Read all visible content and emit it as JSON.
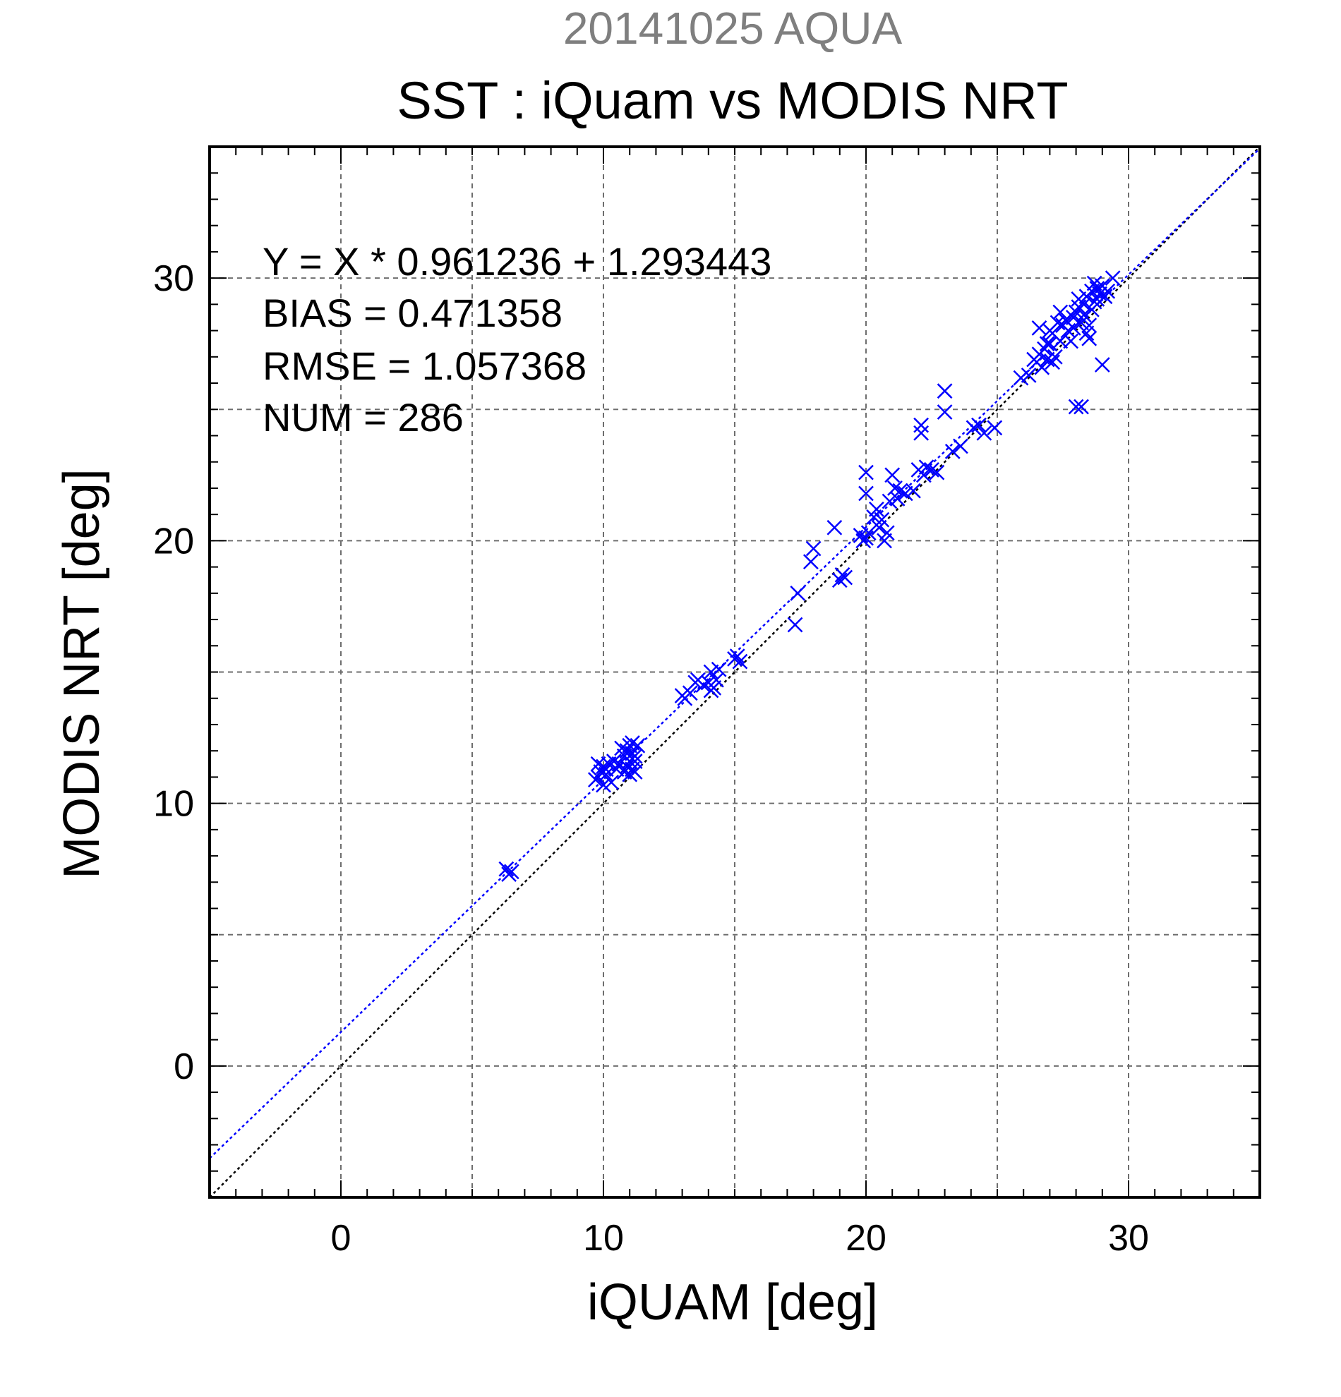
{
  "chart_data": {
    "type": "scatter",
    "suptitle": "20141025 AQUA",
    "title": "SST : iQuam vs MODIS NRT",
    "xlabel": "iQUAM [deg]",
    "ylabel": "MODIS NRT [deg]",
    "xlim": [
      -5,
      35
    ],
    "ylim": [
      -5,
      35
    ],
    "xticks": [
      0,
      10,
      20,
      30
    ],
    "yticks": [
      0,
      10,
      20,
      30
    ],
    "xtick_labels": [
      "0",
      "10",
      "20",
      "30"
    ],
    "ytick_labels": [
      "0",
      "10",
      "20",
      "30"
    ],
    "grid": true,
    "grid_step": 5,
    "minor_step": 1,
    "stats": [
      "Y = X * 0.961236 + 1.293443",
      "BIAS = 0.471358",
      "RMSE = 1.057368",
      "NUM = 286"
    ],
    "fit_line": {
      "slope": 0.961236,
      "intercept": 1.293443,
      "color": "#0000ff"
    },
    "identity_line": {
      "slope": 1,
      "intercept": 0,
      "color": "#000000"
    },
    "marker": {
      "shape": "x",
      "color": "#0000ff"
    },
    "points": [
      [
        6.3,
        7.5
      ],
      [
        6.5,
        7.4
      ],
      [
        6.4,
        7.3
      ],
      [
        9.8,
        11.0
      ],
      [
        9.9,
        11.2
      ],
      [
        10.0,
        11.4
      ],
      [
        10.1,
        11.1
      ],
      [
        10.2,
        11.5
      ],
      [
        9.7,
        10.9
      ],
      [
        10.3,
        10.8
      ],
      [
        10.0,
        10.7
      ],
      [
        10.5,
        11.3
      ],
      [
        10.1,
        11.3
      ],
      [
        10.4,
        11.6
      ],
      [
        9.8,
        11.5
      ],
      [
        10.8,
        11.8
      ],
      [
        10.9,
        12.0
      ],
      [
        11.0,
        12.2
      ],
      [
        11.1,
        11.9
      ],
      [
        11.2,
        11.6
      ],
      [
        10.9,
        11.4
      ],
      [
        11.0,
        11.1
      ],
      [
        11.1,
        11.3
      ],
      [
        11.2,
        11.2
      ],
      [
        11.3,
        12.2
      ],
      [
        11.1,
        12.3
      ],
      [
        10.8,
        11.2
      ],
      [
        10.7,
        12.1
      ],
      [
        11.0,
        11.6
      ],
      [
        11.2,
        11.8
      ],
      [
        10.6,
        11.5
      ],
      [
        13.0,
        14.1
      ],
      [
        13.1,
        14.0
      ],
      [
        13.3,
        14.2
      ],
      [
        13.5,
        14.6
      ],
      [
        13.6,
        14.7
      ],
      [
        13.8,
        14.5
      ],
      [
        14.0,
        14.6
      ],
      [
        14.1,
        15.0
      ],
      [
        14.2,
        14.4
      ],
      [
        14.3,
        14.7
      ],
      [
        14.4,
        15.1
      ],
      [
        14.1,
        14.3
      ],
      [
        15.0,
        15.5
      ],
      [
        15.1,
        15.6
      ],
      [
        15.2,
        15.4
      ],
      [
        17.3,
        16.8
      ],
      [
        17.4,
        18.0
      ],
      [
        17.9,
        19.2
      ],
      [
        18.0,
        19.7
      ],
      [
        18.8,
        20.5
      ],
      [
        19.0,
        18.5
      ],
      [
        19.1,
        18.7
      ],
      [
        19.2,
        18.6
      ],
      [
        19.8,
        20.2
      ],
      [
        19.9,
        20.0
      ],
      [
        20.0,
        20.1
      ],
      [
        20.1,
        20.3
      ],
      [
        20.0,
        21.8
      ],
      [
        20.0,
        22.6
      ],
      [
        20.3,
        20.9
      ],
      [
        20.4,
        21.2
      ],
      [
        20.5,
        20.5
      ],
      [
        20.6,
        20.8
      ],
      [
        20.7,
        20.0
      ],
      [
        20.8,
        20.3
      ],
      [
        20.9,
        21.5
      ],
      [
        21.0,
        22.5
      ],
      [
        21.1,
        22.0
      ],
      [
        21.2,
        21.6
      ],
      [
        21.3,
        21.9
      ],
      [
        21.5,
        21.8
      ],
      [
        21.8,
        21.9
      ],
      [
        22.0,
        22.7
      ],
      [
        22.1,
        24.1
      ],
      [
        22.1,
        24.4
      ],
      [
        22.2,
        22.5
      ],
      [
        22.3,
        22.8
      ],
      [
        22.5,
        22.7
      ],
      [
        22.7,
        22.6
      ],
      [
        23.0,
        25.7
      ],
      [
        23.0,
        24.9
      ],
      [
        23.3,
        23.4
      ],
      [
        23.6,
        23.6
      ],
      [
        24.1,
        24.3
      ],
      [
        24.3,
        24.4
      ],
      [
        24.5,
        24.1
      ],
      [
        24.9,
        24.3
      ],
      [
        25.9,
        26.2
      ],
      [
        26.2,
        26.3
      ],
      [
        26.4,
        26.9
      ],
      [
        26.5,
        26.8
      ],
      [
        26.6,
        27.1
      ],
      [
        26.6,
        28.1
      ],
      [
        26.7,
        26.6
      ],
      [
        26.8,
        27.3
      ],
      [
        26.9,
        26.9
      ],
      [
        27.0,
        27.5
      ],
      [
        27.0,
        28.0
      ],
      [
        27.1,
        26.8
      ],
      [
        27.1,
        27.9
      ],
      [
        27.2,
        27.0
      ],
      [
        27.3,
        28.3
      ],
      [
        27.4,
        27.6
      ],
      [
        27.5,
        28.2
      ],
      [
        27.6,
        28.4
      ],
      [
        27.7,
        28.0
      ],
      [
        27.8,
        27.6
      ],
      [
        27.9,
        28.5
      ],
      [
        28.0,
        28.7
      ],
      [
        28.0,
        25.1
      ],
      [
        28.1,
        28.9
      ],
      [
        28.2,
        25.1
      ],
      [
        28.2,
        28.3
      ],
      [
        28.3,
        29.0
      ],
      [
        28.3,
        28.6
      ],
      [
        28.4,
        27.9
      ],
      [
        28.4,
        29.3
      ],
      [
        28.5,
        28.2
      ],
      [
        28.6,
        29.5
      ],
      [
        28.6,
        28.8
      ],
      [
        28.7,
        29.1
      ],
      [
        28.8,
        29.2
      ],
      [
        28.8,
        29.6
      ],
      [
        28.9,
        29.4
      ],
      [
        29.0,
        29.7
      ],
      [
        29.0,
        26.7
      ],
      [
        29.1,
        29.3
      ],
      [
        29.2,
        29.5
      ],
      [
        29.4,
        30.0
      ],
      [
        28.5,
        27.7
      ],
      [
        27.9,
        28.1
      ],
      [
        27.4,
        28.7
      ],
      [
        28.1,
        29.2
      ],
      [
        26.9,
        27.5
      ],
      [
        28.7,
        29.8
      ]
    ]
  }
}
